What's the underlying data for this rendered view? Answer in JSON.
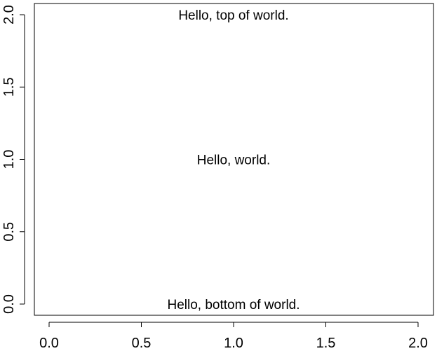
{
  "chart_data": {
    "type": "scatter",
    "title": "",
    "xlabel": "",
    "ylabel": "",
    "xlim": [
      0,
      2
    ],
    "ylim": [
      0,
      2
    ],
    "x_ticks": [
      0.0,
      0.5,
      1.0,
      1.5,
      2.0
    ],
    "y_ticks": [
      0.0,
      0.5,
      1.0,
      1.5,
      2.0
    ],
    "x_tick_labels": [
      "0.0",
      "0.5",
      "1.0",
      "1.5",
      "2.0"
    ],
    "y_tick_labels": [
      "0.0",
      "0.5",
      "1.0",
      "1.5",
      "2.0"
    ],
    "grid": false,
    "annotations": [
      {
        "text": "Hello, top of world.",
        "x": 1.0,
        "y": 2.0
      },
      {
        "text": "Hello, world.",
        "x": 1.0,
        "y": 1.0
      },
      {
        "text": "Hello, bottom of world.",
        "x": 1.0,
        "y": 0.0
      }
    ],
    "colors": {
      "text": "#000000",
      "axis": "#000000",
      "background": "#ffffff"
    }
  }
}
